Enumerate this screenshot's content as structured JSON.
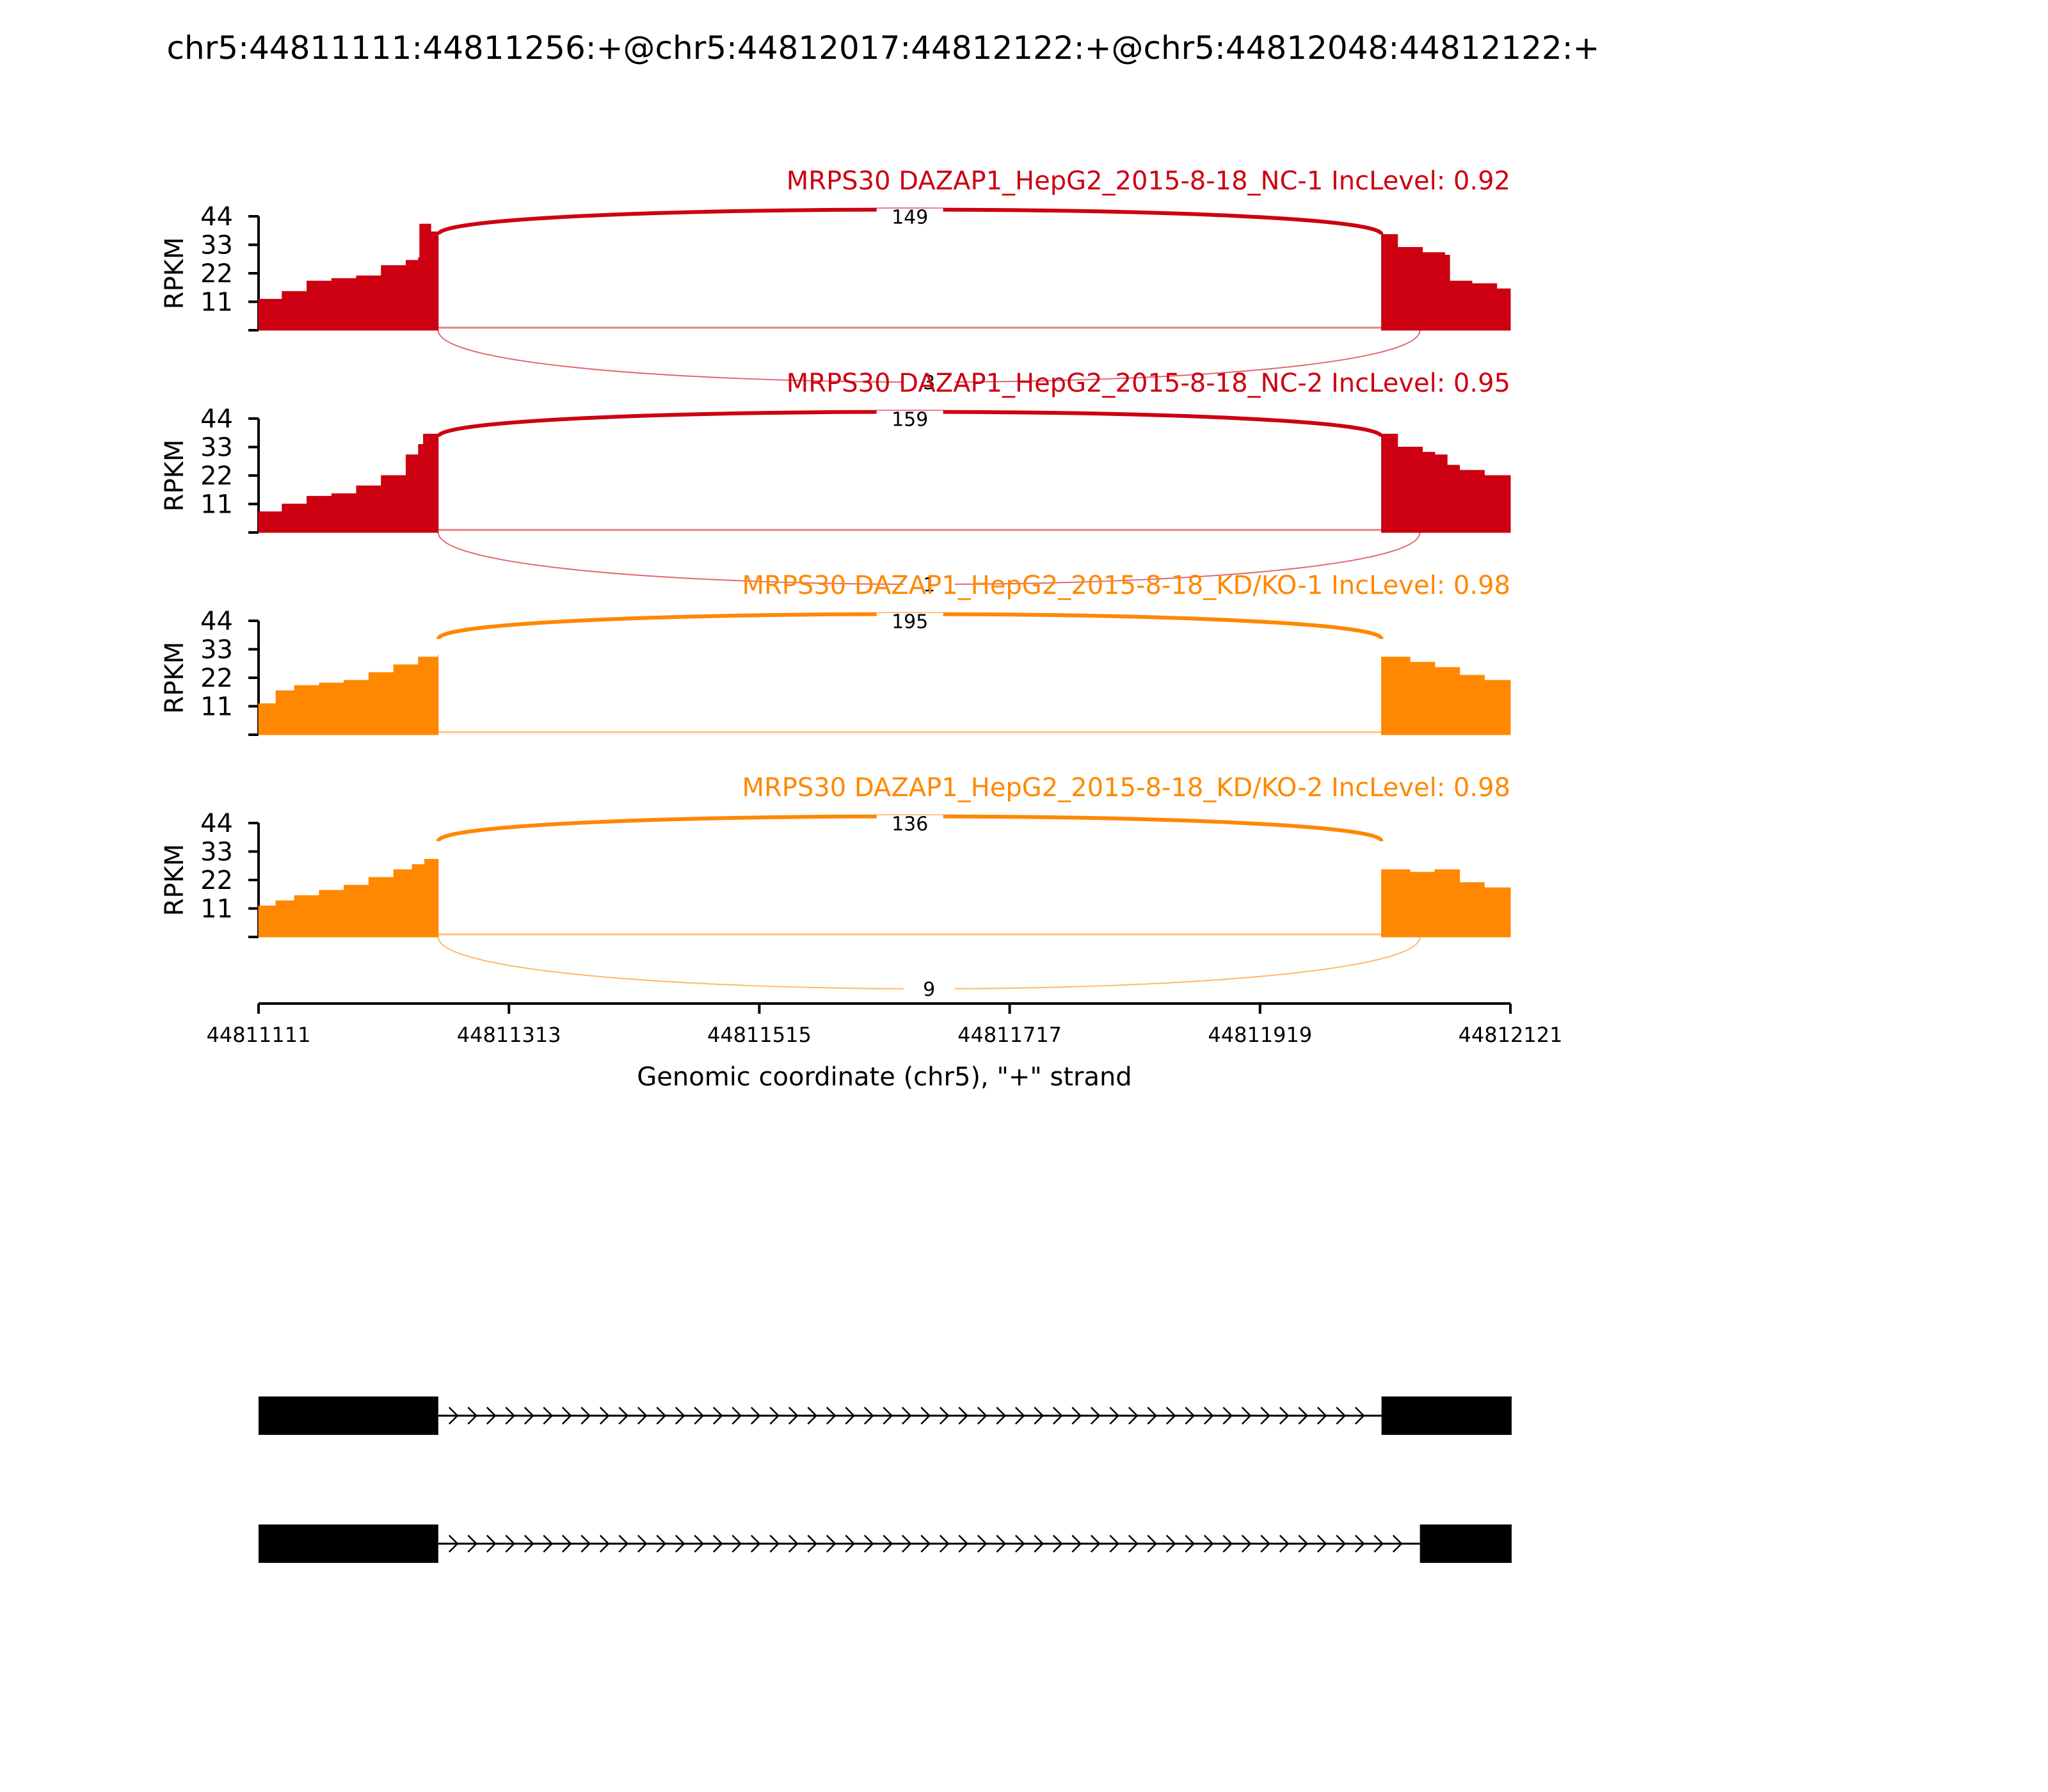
{
  "figure": {
    "title": "chr5:44811111:44811256:+@chr5:44812017:44812122:+@chr5:44812048:44812122:+"
  },
  "chart_data": {
    "type": "area",
    "title": "chr5:44811111:44811256:+@chr5:44812017:44812122:+@chr5:44812048:44812122:+",
    "xlabel": "Genomic coordinate (chr5), \"+\" strand",
    "ylabel": "RPKM",
    "xlim": [
      44811111,
      44812121
    ],
    "x_ticks": [
      "44811111",
      "44811313",
      "44811515",
      "44811717",
      "44811919",
      "44812121"
    ],
    "y_ticks": [
      "11",
      "22",
      "33",
      "44"
    ],
    "ylim": [
      0,
      44
    ],
    "exon1": [
      44811111,
      44811256
    ],
    "exon2": [
      44812017,
      44812122
    ],
    "exon3": [
      44812048,
      44812122
    ],
    "tracks": [
      {
        "title": "MRPS30 DAZAP1_HepG2_2015-8-18_NC-1 IncLevel: 0.92",
        "color": "#cc0011",
        "inclusion_junction": 149,
        "skipping_junction": 3,
        "profile_exon1": [
          [
            44811111,
            12
          ],
          [
            44811130,
            15
          ],
          [
            44811150,
            19
          ],
          [
            44811170,
            20
          ],
          [
            44811190,
            21
          ],
          [
            44811210,
            25
          ],
          [
            44811230,
            27
          ],
          [
            44811240,
            28
          ],
          [
            44811241,
            41
          ],
          [
            44811250,
            38
          ],
          [
            44811256,
            37
          ]
        ],
        "profile_exon2": [
          [
            44812017,
            37
          ],
          [
            44812030,
            32
          ],
          [
            44812050,
            30
          ],
          [
            44812060,
            30
          ],
          [
            44812068,
            29
          ],
          [
            44812072,
            19
          ],
          [
            44812090,
            18
          ],
          [
            44812110,
            16
          ],
          [
            44812121,
            15
          ]
        ],
        "intron_low": 1
      },
      {
        "title": "MRPS30 DAZAP1_HepG2_2015-8-18_NC-2 IncLevel: 0.95",
        "color": "#cc0011",
        "inclusion_junction": 159,
        "skipping_junction": 1,
        "profile_exon1": [
          [
            44811111,
            8
          ],
          [
            44811130,
            11
          ],
          [
            44811150,
            14
          ],
          [
            44811170,
            15
          ],
          [
            44811190,
            18
          ],
          [
            44811210,
            22
          ],
          [
            44811230,
            30
          ],
          [
            44811240,
            34
          ],
          [
            44811244,
            38
          ],
          [
            44811256,
            37
          ]
        ],
        "profile_exon2": [
          [
            44812017,
            38
          ],
          [
            44812030,
            33
          ],
          [
            44812050,
            31
          ],
          [
            44812060,
            30
          ],
          [
            44812070,
            26
          ],
          [
            44812080,
            24
          ],
          [
            44812100,
            22
          ],
          [
            44812121,
            21
          ]
        ],
        "intron_low": 1
      },
      {
        "title": "MRPS30 DAZAP1_HepG2_2015-8-18_KD/KO-1 IncLevel: 0.98",
        "color": "#ff8800",
        "inclusion_junction": 195,
        "skipping_junction": null,
        "profile_exon1": [
          [
            44811111,
            12
          ],
          [
            44811125,
            17
          ],
          [
            44811140,
            19
          ],
          [
            44811160,
            20
          ],
          [
            44811180,
            21
          ],
          [
            44811200,
            24
          ],
          [
            44811220,
            27
          ],
          [
            44811240,
            30
          ],
          [
            44811256,
            31
          ]
        ],
        "profile_exon2": [
          [
            44812017,
            30
          ],
          [
            44812040,
            28
          ],
          [
            44812060,
            26
          ],
          [
            44812080,
            23
          ],
          [
            44812100,
            21
          ],
          [
            44812121,
            20
          ]
        ],
        "intron_low": 1
      },
      {
        "title": "MRPS30 DAZAP1_HepG2_2015-8-18_KD/KO-2 IncLevel: 0.98",
        "color": "#ff8800",
        "inclusion_junction": 136,
        "skipping_junction": 9,
        "profile_exon1": [
          [
            44811111,
            12
          ],
          [
            44811125,
            14
          ],
          [
            44811140,
            16
          ],
          [
            44811160,
            18
          ],
          [
            44811180,
            20
          ],
          [
            44811200,
            23
          ],
          [
            44811220,
            26
          ],
          [
            44811235,
            28
          ],
          [
            44811245,
            30
          ],
          [
            44811256,
            28
          ]
        ],
        "profile_exon2": [
          [
            44812017,
            26
          ],
          [
            44812040,
            25
          ],
          [
            44812060,
            26
          ],
          [
            44812080,
            21
          ],
          [
            44812100,
            19
          ],
          [
            44812121,
            17
          ]
        ],
        "intron_low": 1
      }
    ],
    "isoforms": [
      {
        "exons": [
          [
            44811111,
            44811256
          ],
          [
            44812017,
            44812122
          ]
        ]
      },
      {
        "exons": [
          [
            44811111,
            44811256
          ],
          [
            44812048,
            44812122
          ]
        ]
      }
    ]
  }
}
